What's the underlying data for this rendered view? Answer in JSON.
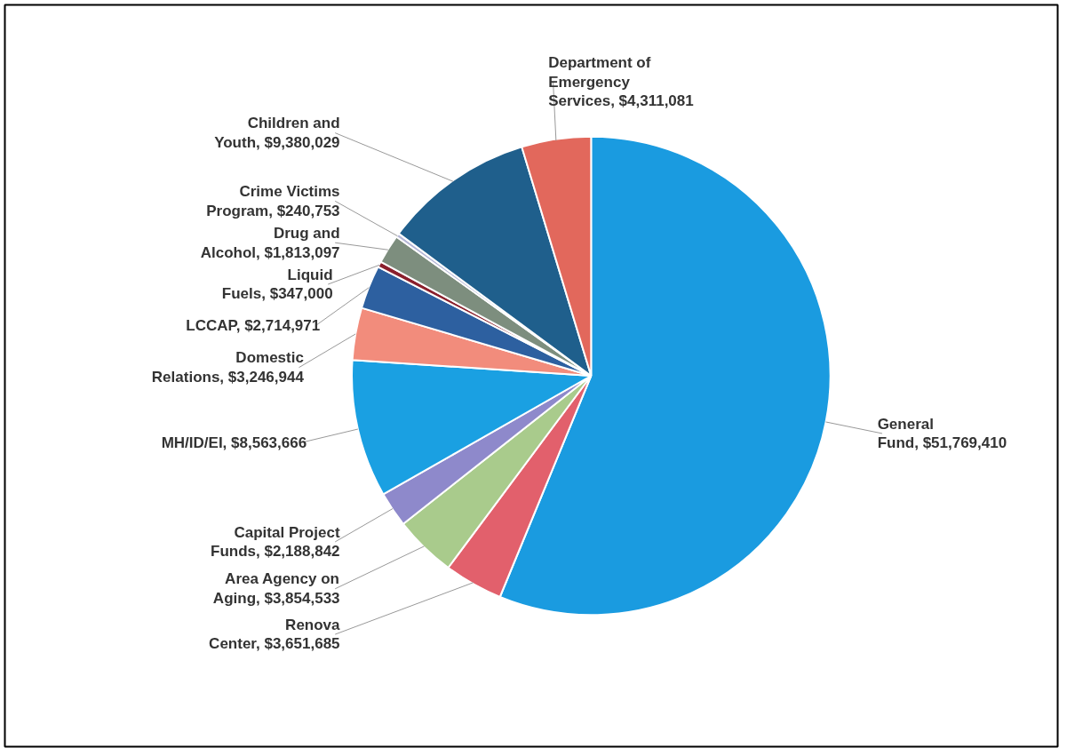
{
  "chart_data": {
    "type": "pie",
    "categories": [
      "General Fund",
      "Renova Center",
      "Area Agency on Aging",
      "Capital Project Funds",
      "MH/ID/EI",
      "Domestic Relations",
      "LCCAP",
      "Liquid Fuels",
      "Drug and Alcohol",
      "Crime Victims Program",
      "Children and Youth",
      "Department of Emergency Services"
    ],
    "values": [
      51769410,
      3651685,
      3854533,
      2188842,
      8563666,
      3246944,
      2714971,
      347000,
      1813097,
      240753,
      9380029,
      4311081
    ],
    "value_labels": [
      "$51,769,410",
      "$3,651,685",
      "$3,854,533",
      "$2,188,842",
      "$8,563,666",
      "$3,246,944",
      "$2,714,971",
      "$347,000",
      "$1,813,097",
      "$240,753",
      "$9,380,029",
      "$4,311,081"
    ],
    "colors": [
      "#1a9be0",
      "#e2606c",
      "#a9cb8c",
      "#8e89cb",
      "#1aa0e2",
      "#f28c7c",
      "#2d60a0",
      "#8a1f2c",
      "#7d8e7e",
      "#b4b6d6",
      "#1f5f8c",
      "#e2685c"
    ]
  }
}
